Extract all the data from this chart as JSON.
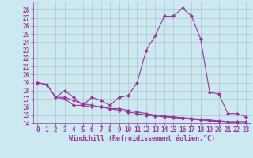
{
  "xlabel": "Windchill (Refroidissement éolien,°C)",
  "background_color": "#cce8f0",
  "line_color": "#993399",
  "grid_color": "#aabbcc",
  "x": [
    0,
    1,
    2,
    3,
    4,
    5,
    6,
    7,
    8,
    9,
    10,
    11,
    12,
    13,
    14,
    15,
    16,
    17,
    18,
    19,
    20,
    21,
    22,
    23
  ],
  "line1": [
    19.0,
    18.8,
    17.2,
    18.0,
    17.2,
    16.2,
    17.2,
    16.8,
    16.2,
    17.2,
    17.4,
    19.0,
    23.0,
    24.8,
    27.2,
    27.2,
    28.2,
    27.2,
    24.4,
    17.8,
    17.6,
    15.2,
    15.2,
    14.8
  ],
  "line2": [
    19.0,
    18.8,
    17.2,
    17.0,
    16.2,
    16.2,
    16.0,
    16.0,
    15.8,
    15.8,
    15.6,
    15.4,
    15.2,
    15.0,
    14.9,
    14.8,
    14.7,
    14.6,
    14.5,
    14.4,
    14.3,
    14.2,
    14.2,
    14.2
  ],
  "line3": [
    19.0,
    18.8,
    17.2,
    17.2,
    16.8,
    16.4,
    16.2,
    16.0,
    15.8,
    15.6,
    15.4,
    15.2,
    15.0,
    14.9,
    14.8,
    14.7,
    14.6,
    14.5,
    14.4,
    14.3,
    14.2,
    14.1,
    14.0,
    14.0
  ],
  "ylim": [
    14,
    29
  ],
  "xlim": [
    -0.5,
    23.5
  ],
  "yticks": [
    14,
    15,
    16,
    17,
    18,
    19,
    20,
    21,
    22,
    23,
    24,
    25,
    26,
    27,
    28
  ],
  "xticks": [
    0,
    1,
    2,
    3,
    4,
    5,
    6,
    7,
    8,
    9,
    10,
    11,
    12,
    13,
    14,
    15,
    16,
    17,
    18,
    19,
    20,
    21,
    22,
    23
  ],
  "marker": "D",
  "marker_size": 2.0,
  "linewidth": 0.8,
  "tick_fontsize": 5.5,
  "xlabel_fontsize": 6.0
}
